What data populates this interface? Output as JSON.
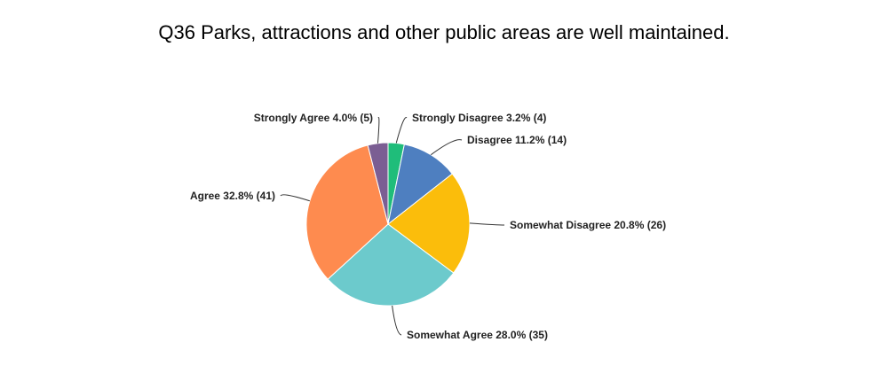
{
  "chart_data": {
    "type": "pie",
    "title": "Q36 Parks, attractions and other public areas are well maintained.",
    "slices": [
      {
        "label": "Strongly Disagree 3.2% (4)",
        "name": "Strongly Disagree",
        "percent": 3.2,
        "count": 4,
        "color": "#1fbd7a"
      },
      {
        "label": "Disagree 11.2% (14)",
        "name": "Disagree",
        "percent": 11.2,
        "count": 14,
        "color": "#4e7fc0"
      },
      {
        "label": "Somewhat Disagree 20.8% (26)",
        "name": "Somewhat Disagree",
        "percent": 20.8,
        "count": 26,
        "color": "#fbbd0b"
      },
      {
        "label": "Somewhat Agree 28.0% (35)",
        "name": "Somewhat Agree",
        "percent": 28.0,
        "count": 35,
        "color": "#6ccacc"
      },
      {
        "label": "Agree 32.8% (41)",
        "name": "Agree",
        "percent": 32.8,
        "count": 41,
        "color": "#fe8b4f"
      },
      {
        "label": "Strongly Agree 4.0% (5)",
        "name": "Strongly Agree",
        "percent": 4.0,
        "count": 5,
        "color": "#7b5e93"
      }
    ],
    "start": "12 o'clock",
    "direction": "clockwise",
    "legend": "none (leader-line labels)"
  }
}
